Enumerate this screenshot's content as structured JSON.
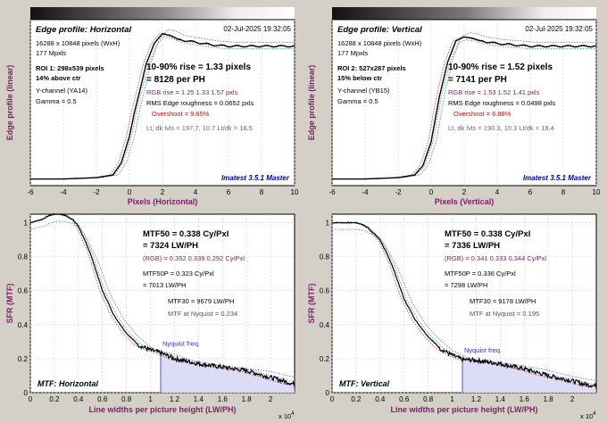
{
  "colors": {
    "background": "#d4d0c8",
    "plot_bg": "#ffffff",
    "curve": "#000000",
    "rgb_dotted": [
      "#cc3344",
      "#33aa55",
      "#5566dd"
    ],
    "label_purple": "#7a1f66",
    "label_red": "#bb1111",
    "footer_blue": "#0000aa",
    "fill_blue": "#dcdcf6"
  },
  "panels": [
    {
      "id": "edge-h",
      "date": "02-Jul-2025 19:32:05",
      "title": "Edge profile: Horizontal",
      "size_px": "16288 x 10848 pixels (WxH)",
      "mpxls": "177 Mpxls",
      "roi": "ROI 1:  298x539 pixels",
      "roi_pos": "14% above ctr",
      "channel": "Y-channel  (YA14)",
      "gamma": "Gamma = 0.5",
      "rise": "10-90% rise = 1.33 pixels",
      "per_ph": "= 8128 per PH",
      "rgb": "RGB rise = 1.25  1.33  1.57 pxls",
      "rms": "RMS Edge roughness = 0.0652 pxls",
      "overshoot": "Overshoot = 9.65%",
      "levels": "Lt, dk lvls = 197.7, 10.7   Lt/dk = 18.5",
      "footer": "Imatest 3.5.1 Master"
    },
    {
      "id": "edge-v",
      "date": "02-Jul-2025 19:32:05",
      "title": "Edge profile: Vertical",
      "size_px": "16288 x 10848 pixels (WxH)",
      "mpxls": "177 Mpxls",
      "roi": "ROI 2:  527x287 pixels",
      "roi_pos": "15% below ctr",
      "channel": "Y-channel  (YB15)",
      "gamma": "Gamma = 0.5",
      "rise": "10-90% rise = 1.52 pixels",
      "per_ph": "= 7141 per PH",
      "rgb": "RGB rise = 1.53  1.52  1.41 pxls",
      "rms": "RMS Edge roughness = 0.0498 pxls",
      "overshoot": "Overshoot = 6.88%",
      "levels": "Lt, dk lvls = 190.3, 10.3   Lt/dk = 18.4",
      "footer": "Imatest 3.5.1 Master"
    },
    {
      "id": "mtf-h",
      "mtf50": "MTF50 = 0.338 Cy/Pxl",
      "lwph": "= 7324 LW/PH",
      "rgb": "(RGB) = 0.352  0.339  0.292 Cy/Pxl",
      "mtf50p": "MTF50P = 0.323 Cy/Pxl",
      "mtf50p_lw": "= 7013 LW/PH",
      "mtf30": "MTF30 = 9679 LW/PH",
      "nyq": "MTF at Nyquist = 0.234",
      "nyq_label": "Nyquist freq.",
      "corner": "MTF: Horizontal"
    },
    {
      "id": "mtf-v",
      "mtf50": "MTF50 = 0.338 Cy/Pxl",
      "lwph": "= 7336 LW/PH",
      "rgb": "(RGB) = 0.341  0.333  0.344 Cy/Pxl",
      "mtf50p": "MTF50P = 0.336 Cy/Pxl",
      "mtf50p_lw": "= 7298 LW/PH",
      "mtf30": "MTF30 = 9178 LW/PH",
      "nyq": "MTF at Nyquist = 0.195",
      "nyq_label": "Nyquist freq.",
      "corner": "MTF: Vertical"
    }
  ],
  "axes": {
    "edge_ylabel": "Edge profile (linear)",
    "edge_xlabel_h": "Pixels (Horizontal)",
    "edge_xlabel_v": "Pixels (Vertical)",
    "mtf_ylabel": "SFR (MTF)",
    "mtf_xlabel": "Line widths per picture height (LW/PH)",
    "mtf_exponent": "x 10",
    "mtf_exponent_power": "4"
  },
  "chart_data": [
    {
      "type": "line",
      "title": "Edge profile: Horizontal",
      "xlabel": "Pixels (Horizontal)",
      "ylabel": "Edge profile (linear)",
      "xlim": [
        -6,
        10
      ],
      "x_ticks": [
        "-6",
        "-4",
        "-2",
        "0",
        "2",
        "4",
        "6",
        "8",
        "10"
      ],
      "series": [
        {
          "x": [
            -6,
            -4,
            -2,
            -1,
            -0.5,
            0,
            0.3,
            0.7,
            1,
            1.5,
            2,
            2.5,
            3,
            4,
            5,
            6,
            7,
            8,
            9,
            10
          ],
          "y": [
            0,
            0,
            0.01,
            0.03,
            0.12,
            0.32,
            0.5,
            0.7,
            0.86,
            1.02,
            1.095,
            1.08,
            1.05,
            1.03,
            1.01,
            1.0,
            1.0,
            1.0,
            1.0,
            1.0
          ]
        }
      ]
    },
    {
      "type": "line",
      "title": "Edge profile: Vertical",
      "xlabel": "Pixels (Vertical)",
      "ylabel": "Edge profile (linear)",
      "xlim": [
        -6,
        10
      ],
      "x_ticks": [
        "-6",
        "-4",
        "-2",
        "0",
        "2",
        "4",
        "6",
        "8",
        "10"
      ],
      "series": [
        {
          "x": [
            -6,
            -4,
            -2,
            -1,
            -0.5,
            0,
            0.5,
            1,
            1.5,
            2,
            2.5,
            3,
            4,
            5,
            6,
            7,
            8,
            9,
            10
          ],
          "y": [
            0,
            0,
            0.01,
            0.03,
            0.1,
            0.28,
            0.62,
            0.88,
            1.04,
            1.07,
            1.06,
            1.04,
            1.02,
            1.01,
            1.0,
            1.0,
            1.0,
            1.0,
            1.0
          ]
        }
      ]
    },
    {
      "type": "line",
      "title": "MTF: Horizontal",
      "xlabel": "Line widths per picture height (LW/PH)",
      "ylabel": "SFR (MTF)",
      "xlim": [
        0,
        2.2
      ],
      "ylim": [
        0,
        1.05
      ],
      "x_scale_note": "x 10^4",
      "x_ticks": [
        "0",
        "0.2",
        "0.4",
        "0.6",
        "0.8",
        "1",
        "1.2",
        "1.4",
        "1.6",
        "1.8",
        "2"
      ],
      "y_ticks": [
        "0",
        "0.2",
        "0.4",
        "0.6",
        "0.8",
        "1"
      ],
      "nyquist_x": 1.085,
      "series": [
        {
          "x": [
            0,
            0.05,
            0.1,
            0.15,
            0.2,
            0.25,
            0.3,
            0.35,
            0.4,
            0.5,
            0.6,
            0.7,
            0.8,
            0.9,
            1.0,
            1.085,
            1.2,
            1.4,
            1.6,
            1.8,
            2.0,
            2.1,
            2.2
          ],
          "y": [
            1.0,
            1.01,
            1.02,
            1.04,
            1.05,
            1.05,
            1.04,
            1.02,
            0.98,
            0.82,
            0.6,
            0.45,
            0.35,
            0.28,
            0.25,
            0.234,
            0.2,
            0.17,
            0.15,
            0.13,
            0.09,
            0.07,
            0.05
          ]
        }
      ]
    },
    {
      "type": "line",
      "title": "MTF: Vertical",
      "xlabel": "Line widths per picture height (LW/PH)",
      "ylabel": "SFR (MTF)",
      "xlim": [
        0,
        2.2
      ],
      "ylim": [
        0,
        1.05
      ],
      "x_scale_note": "x 10^4",
      "x_ticks": [
        "0",
        "0.2",
        "0.4",
        "0.6",
        "0.8",
        "1",
        "1.2",
        "1.4",
        "1.6",
        "1.8",
        "2"
      ],
      "y_ticks": [
        "0",
        "0.2",
        "0.4",
        "0.6",
        "0.8",
        "1"
      ],
      "nyquist_x": 1.085,
      "series": [
        {
          "x": [
            0,
            0.05,
            0.1,
            0.15,
            0.2,
            0.25,
            0.3,
            0.4,
            0.5,
            0.6,
            0.7,
            0.8,
            0.9,
            1.0,
            1.085,
            1.2,
            1.4,
            1.6,
            1.8,
            2.0,
            2.1,
            2.2
          ],
          "y": [
            1.0,
            1.0,
            1.0,
            1.0,
            1.0,
            0.99,
            0.97,
            0.9,
            0.75,
            0.55,
            0.42,
            0.33,
            0.26,
            0.22,
            0.195,
            0.19,
            0.17,
            0.14,
            0.1,
            0.07,
            0.05,
            0.04
          ]
        }
      ]
    }
  ]
}
